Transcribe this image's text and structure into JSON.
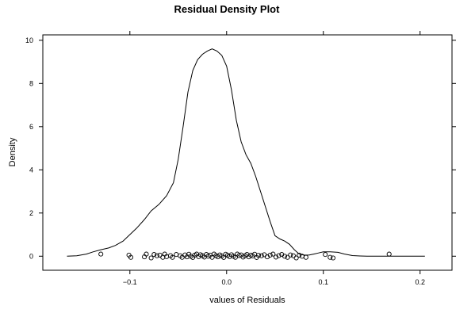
{
  "chart_data": {
    "type": "line",
    "title": "Residual Density Plot",
    "xlabel": "values of Residuals",
    "ylabel": "Density",
    "xlim": [
      -0.19,
      0.233
    ],
    "ylim": [
      -0.65,
      10.25
    ],
    "x_ticks": [
      -0.1,
      0.0,
      0.1,
      0.2
    ],
    "x_tick_labels": [
      "−0.1",
      "0.0",
      "0.1",
      "0.2"
    ],
    "y_ticks": [
      0,
      2,
      4,
      6,
      8,
      10
    ],
    "y_tick_labels": [
      "0",
      "2",
      "4",
      "6",
      "8",
      "10"
    ],
    "grid": false,
    "legend": "none",
    "colors": {
      "line": "#000000",
      "points": "#000000",
      "frame": "#000000"
    },
    "series": [
      {
        "type": "line",
        "x": [
          -0.165,
          -0.155,
          -0.145,
          -0.138,
          -0.13,
          -0.122,
          -0.115,
          -0.107,
          -0.1,
          -0.093,
          -0.085,
          -0.078,
          -0.07,
          -0.062,
          -0.055,
          -0.05,
          -0.045,
          -0.04,
          -0.035,
          -0.03,
          -0.025,
          -0.02,
          -0.015,
          -0.01,
          -0.005,
          0.0,
          0.005,
          0.01,
          0.015,
          0.02,
          0.025,
          0.03,
          0.035,
          0.04,
          0.045,
          0.05,
          0.055,
          0.06,
          0.065,
          0.07,
          0.075,
          0.08,
          0.085,
          0.09,
          0.095,
          0.1,
          0.107,
          0.115,
          0.122,
          0.13,
          0.138,
          0.145,
          0.155,
          0.165,
          0.175,
          0.185,
          0.195,
          0.205
        ],
        "y": [
          0.0,
          0.02,
          0.1,
          0.2,
          0.3,
          0.38,
          0.5,
          0.7,
          1.0,
          1.3,
          1.7,
          2.1,
          2.4,
          2.8,
          3.4,
          4.5,
          6.0,
          7.6,
          8.6,
          9.1,
          9.35,
          9.5,
          9.6,
          9.5,
          9.3,
          8.8,
          7.7,
          6.3,
          5.3,
          4.7,
          4.3,
          3.7,
          3.0,
          2.3,
          1.6,
          0.95,
          0.8,
          0.7,
          0.55,
          0.3,
          0.1,
          0.05,
          0.05,
          0.1,
          0.15,
          0.2,
          0.2,
          0.18,
          0.1,
          0.03,
          0.01,
          0.0,
          0.0,
          0.0,
          0.0,
          0.0,
          0.0,
          0.0
        ]
      },
      {
        "type": "scatter",
        "marker": "open-circle",
        "x": [
          -0.13,
          -0.101,
          -0.099,
          -0.085,
          -0.083,
          -0.078,
          -0.075,
          -0.072,
          -0.069,
          -0.066,
          -0.064,
          -0.062,
          -0.058,
          -0.056,
          -0.052,
          -0.048,
          -0.046,
          -0.043,
          -0.041,
          -0.039,
          -0.037,
          -0.035,
          -0.033,
          -0.031,
          -0.029,
          -0.027,
          -0.025,
          -0.023,
          -0.021,
          -0.019,
          -0.017,
          -0.015,
          -0.013,
          -0.011,
          -0.009,
          -0.007,
          -0.005,
          -0.003,
          -0.001,
          0.001,
          0.003,
          0.005,
          0.007,
          0.009,
          0.011,
          0.013,
          0.015,
          0.017,
          0.019,
          0.021,
          0.023,
          0.025,
          0.027,
          0.029,
          0.031,
          0.033,
          0.036,
          0.039,
          0.042,
          0.045,
          0.048,
          0.051,
          0.054,
          0.057,
          0.06,
          0.063,
          0.066,
          0.069,
          0.072,
          0.075,
          0.078,
          0.082,
          0.102,
          0.107,
          0.11,
          0.168
        ],
        "y": [
          0.1,
          0.05,
          -0.05,
          -0.03,
          0.1,
          -0.08,
          0.08,
          0.02,
          0.05,
          -0.05,
          0.1,
          -0.02,
          0.03,
          -0.05,
          0.08,
          0.02,
          -0.05,
          0.06,
          -0.03,
          0.09,
          0.0,
          -0.06,
          0.05,
          0.1,
          -0.02,
          0.07,
          0.02,
          -0.04,
          0.08,
          0.0,
          0.05,
          -0.05,
          0.1,
          0.03,
          -0.03,
          0.06,
          0.01,
          -0.06,
          0.09,
          0.04,
          -0.02,
          0.07,
          0.0,
          -0.05,
          0.1,
          0.03,
          0.06,
          -0.04,
          0.02,
          0.08,
          -0.03,
          0.05,
          0.01,
          0.09,
          -0.06,
          0.04,
          0.02,
          0.07,
          -0.03,
          0.05,
          0.1,
          -0.04,
          0.03,
          0.08,
          0.0,
          -0.05,
          0.06,
          0.02,
          -0.08,
          0.05,
          0.0,
          -0.05,
          0.08,
          -0.05,
          -0.08,
          0.1
        ]
      }
    ]
  }
}
